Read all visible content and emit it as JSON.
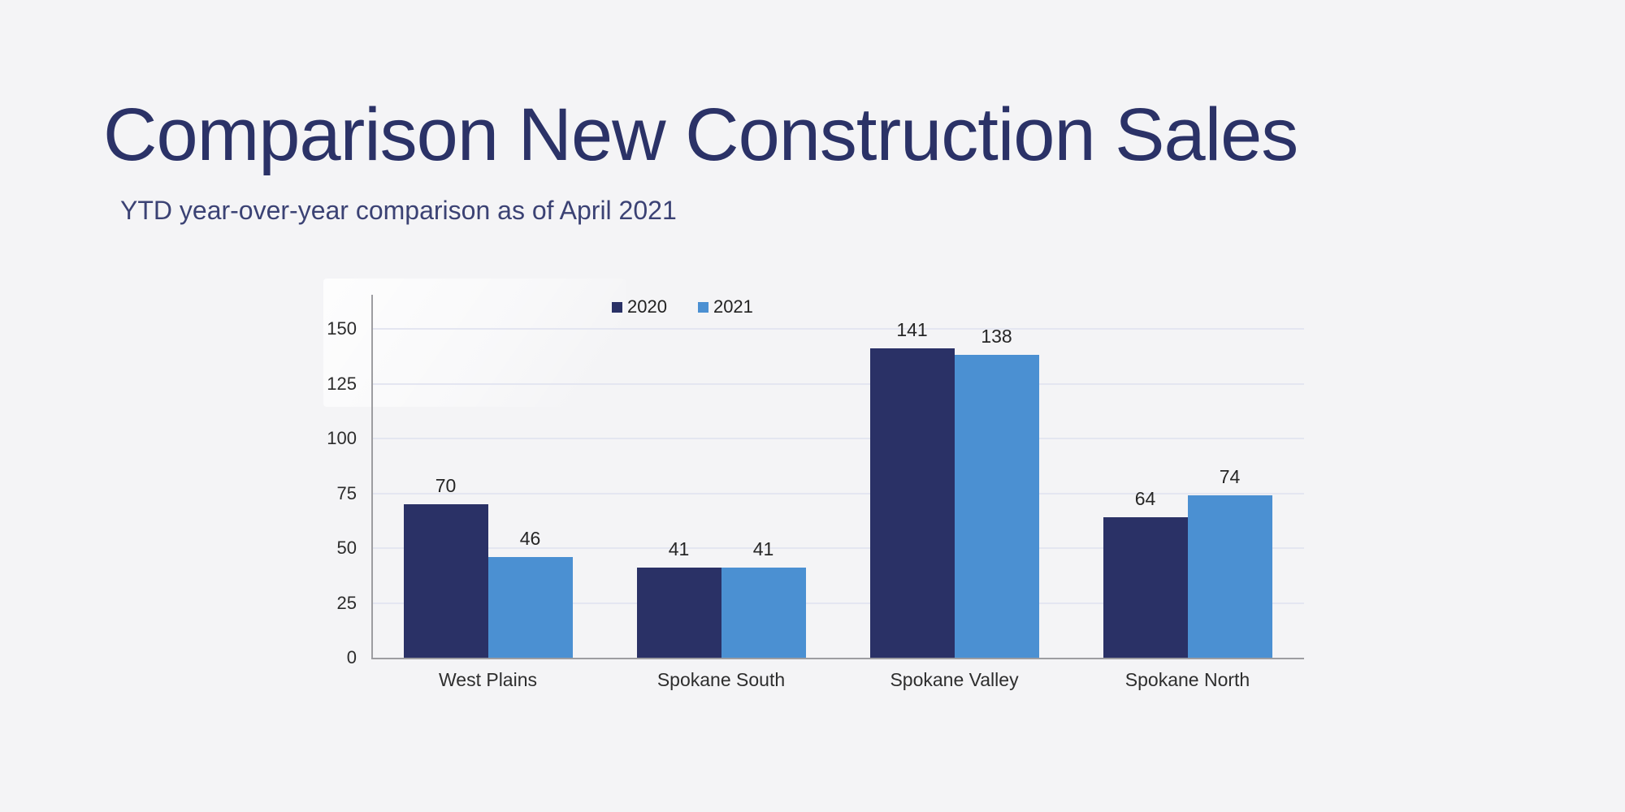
{
  "slide": {
    "title": "Comparison New Construction Sales",
    "subtitle": "YTD year-over-year comparison as of April 2021"
  },
  "colors": {
    "background": "#f4f4f6",
    "title": "#2b3267",
    "subtitle": "#3b4274",
    "grid": "#e4e6f1",
    "axis": "#9d9da1",
    "chart_text": "#2c2c2c",
    "series_2020": "#2a3166",
    "series_2021": "#4b90d2"
  },
  "chart_data": {
    "type": "bar",
    "title": "Comparison New Construction Sales",
    "subtitle": "YTD year-over-year comparison as of April 2021",
    "categories": [
      "West Plains",
      "Spokane South",
      "Spokane Valley",
      "Spokane North"
    ],
    "series": [
      {
        "name": "2020",
        "color": "#2a3166",
        "values": [
          70,
          41,
          141,
          64
        ]
      },
      {
        "name": "2021",
        "color": "#4b90d2",
        "values": [
          46,
          41,
          138,
          74
        ]
      }
    ],
    "ylim": [
      0,
      150
    ],
    "yticks": [
      0,
      25,
      50,
      75,
      100,
      125,
      150
    ],
    "grid": true,
    "legend_position": "top-center",
    "data_labels": true,
    "xlabel": "",
    "ylabel": ""
  }
}
